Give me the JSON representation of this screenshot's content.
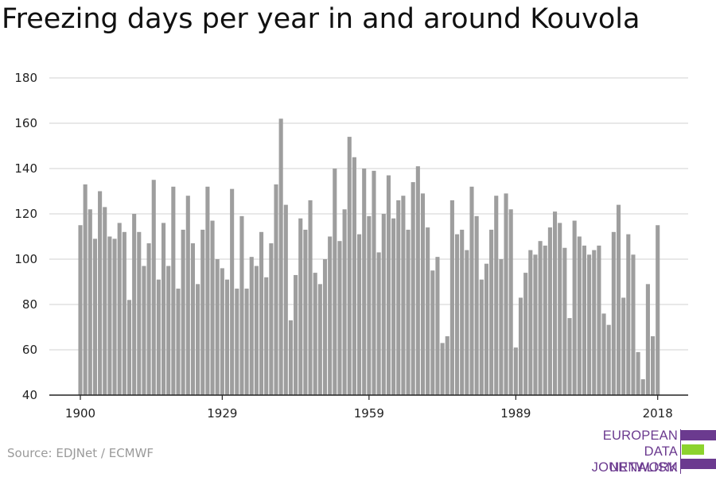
{
  "title": "Freezing days per year in and around Kouvola",
  "source": "Source: EDJNet / ECMWF",
  "logo": {
    "lines": [
      "EUROPEAN",
      "DATA JOURNALISM",
      "NETWORK"
    ],
    "colors": [
      "#6b3a8f",
      "#8dd32e",
      "#6b3a8f"
    ]
  },
  "colors": {
    "bar": "#9e9e9e",
    "grid": "#d9d9d9",
    "axis": "#222222",
    "text": "#222222"
  },
  "chart_data": {
    "type": "bar",
    "title": "Freezing days per year in and around Kouvola",
    "xlabel": "",
    "ylabel": "",
    "ylim": [
      40,
      180
    ],
    "yticks": [
      40,
      60,
      80,
      100,
      120,
      140,
      160,
      180
    ],
    "xticks": [
      1900,
      1929,
      1959,
      1989,
      2018
    ],
    "grid": true,
    "x": [
      1900,
      1901,
      1902,
      1903,
      1904,
      1905,
      1906,
      1907,
      1908,
      1909,
      1910,
      1911,
      1912,
      1913,
      1914,
      1915,
      1916,
      1917,
      1918,
      1919,
      1920,
      1921,
      1922,
      1923,
      1924,
      1925,
      1926,
      1927,
      1928,
      1929,
      1930,
      1931,
      1932,
      1933,
      1934,
      1935,
      1936,
      1937,
      1938,
      1939,
      1940,
      1941,
      1942,
      1943,
      1944,
      1945,
      1946,
      1947,
      1948,
      1949,
      1950,
      1951,
      1952,
      1953,
      1954,
      1955,
      1956,
      1957,
      1958,
      1959,
      1960,
      1961,
      1962,
      1963,
      1964,
      1965,
      1966,
      1967,
      1968,
      1969,
      1970,
      1971,
      1972,
      1973,
      1974,
      1975,
      1976,
      1977,
      1978,
      1979,
      1980,
      1981,
      1982,
      1983,
      1984,
      1985,
      1986,
      1987,
      1988,
      1989,
      1990,
      1991,
      1992,
      1993,
      1994,
      1995,
      1996,
      1997,
      1998,
      1999,
      2000,
      2001,
      2002,
      2003,
      2004,
      2005,
      2006,
      2007,
      2008,
      2009,
      2010,
      2011,
      2012,
      2013,
      2014,
      2015,
      2016,
      2017,
      2018
    ],
    "values": [
      115,
      133,
      122,
      109,
      130,
      123,
      110,
      109,
      116,
      112,
      82,
      120,
      112,
      97,
      107,
      135,
      91,
      116,
      97,
      132,
      87,
      113,
      128,
      107,
      89,
      113,
      132,
      117,
      100,
      96,
      91,
      131,
      87,
      119,
      87,
      101,
      97,
      112,
      92,
      107,
      133,
      162,
      124,
      73,
      93,
      118,
      113,
      126,
      94,
      89,
      100,
      110,
      140,
      108,
      122,
      154,
      145,
      111,
      140,
      119,
      139,
      103,
      120,
      137,
      118,
      126,
      128,
      113,
      134,
      141,
      129,
      114,
      95,
      101,
      63,
      66,
      126,
      111,
      113,
      104,
      132,
      119,
      91,
      98,
      113,
      128,
      100,
      129,
      122,
      61,
      83,
      94,
      104,
      102,
      108,
      106,
      114,
      121,
      116,
      105,
      74,
      117,
      110,
      106,
      102,
      104,
      106,
      76,
      71,
      112,
      124,
      83,
      111,
      102,
      59,
      47,
      89,
      66,
      115
    ]
  }
}
